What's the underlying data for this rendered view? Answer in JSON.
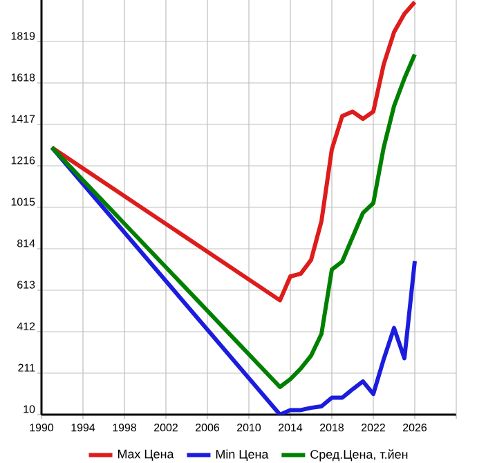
{
  "chart_data": {
    "type": "line",
    "x": [
      1991,
      2013,
      2014,
      2015,
      2016,
      2017,
      2018,
      2019,
      2020,
      2021,
      2022,
      2023,
      2024,
      2025,
      2026
    ],
    "series": [
      {
        "name": "Max Цена",
        "color": "#dd1c1c",
        "values": [
          1305,
          564,
          680,
          693,
          760,
          948,
          1296,
          1457,
          1479,
          1444,
          1479,
          1707,
          1864,
          1953,
          2010
        ]
      },
      {
        "name": "Min Цена",
        "color": "#1c1cdd",
        "values": [
          1305,
          10,
          32,
          32,
          43,
          50,
          92,
          92,
          133,
          171,
          110,
          278,
          430,
          283,
          754
        ]
      },
      {
        "name": "Сред.Цена, т.йен",
        "color": "#008000",
        "values": [
          1305,
          144,
          182,
          233,
          296,
          401,
          713,
          752,
          870,
          988,
          1035,
          1305,
          1506,
          1640,
          1756
        ]
      }
    ],
    "xlim": [
      1990,
      2030
    ],
    "ylim": [
      10,
      2020
    ],
    "xticks": [
      1990,
      1994,
      1998,
      2002,
      2006,
      2010,
      2014,
      2018,
      2022,
      2026
    ],
    "yticks": [
      10,
      211,
      412,
      613,
      814,
      1015,
      1216,
      1417,
      1618,
      1819
    ],
    "grid": true,
    "legend": "bottom",
    "marker": "none",
    "line_style": "solid"
  }
}
